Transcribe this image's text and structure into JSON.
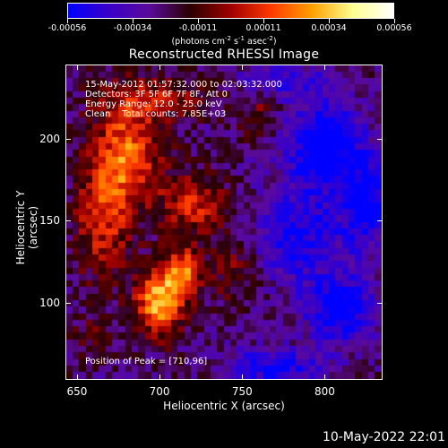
{
  "colorbar": {
    "ticks": [
      "-0.00056",
      "-0.00034",
      "-0.00011",
      "0.00011",
      "0.00034",
      "0.00056"
    ],
    "units_main": "(photons cm",
    "units_exp1": "-2",
    "units_mid1": " s",
    "units_exp2": "-1",
    "units_mid2": " asec",
    "units_exp3": "-2",
    "units_end": ")",
    "colors": [
      "#0000ff",
      "#3a00c8",
      "#5b0a9a",
      "#2a0000",
      "#a00000",
      "#ff3a00",
      "#ffa000",
      "#ffff90",
      "#ffffff"
    ]
  },
  "annotations": {
    "line1": "15-May-2012 01:57:32.000 to 02:03:32.000",
    "line2": "Detectors: 3F 5F 6F 7F 8F, Att 0",
    "line3": "Energy Range: 12.0 - 25.0 keV",
    "line4": "Clean    Total counts: 7.85E+03",
    "peak": "Position of Peak = [710,96]"
  },
  "footer": {
    "timestamp": "10-May-2022 22:01"
  },
  "chart_data": {
    "type": "heatmap",
    "title": "Reconstructed RHESSI Image",
    "xlabel": "Heliocentric X (arcsec)",
    "ylabel": "Heliocentric Y (arcsec)",
    "xlim": [
      643,
      835
    ],
    "ylim": [
      53,
      245
    ],
    "xticks": [
      650,
      700,
      750,
      800
    ],
    "yticks": [
      100,
      150,
      200
    ],
    "zlim": [
      -0.00056,
      0.00056
    ],
    "peak": [
      710,
      96
    ],
    "grid_size": [
      48,
      48
    ],
    "hot_regions": [
      {
        "x": 700,
        "y": 100,
        "sx": 10,
        "sy": 14,
        "amp": 0.00056
      },
      {
        "x": 715,
        "y": 118,
        "sx": 8,
        "sy": 10,
        "amp": 0.0004
      },
      {
        "x": 680,
        "y": 190,
        "sx": 14,
        "sy": 22,
        "amp": 0.00042
      },
      {
        "x": 665,
        "y": 150,
        "sx": 12,
        "sy": 25,
        "amp": 0.0003
      },
      {
        "x": 720,
        "y": 160,
        "sx": 14,
        "sy": 14,
        "amp": 0.0003
      },
      {
        "x": 745,
        "y": 120,
        "sx": 10,
        "sy": 14,
        "amp": 0.00018
      },
      {
        "x": 700,
        "y": 225,
        "sx": 25,
        "sy": 10,
        "amp": 0.00022
      },
      {
        "x": 760,
        "y": 215,
        "sx": 8,
        "sy": 10,
        "amp": 0.00016
      },
      {
        "x": 660,
        "y": 80,
        "sx": 10,
        "sy": 10,
        "amp": 0.00012
      }
    ],
    "cold_regions": [
      {
        "x": 800,
        "y": 195,
        "sx": 15,
        "sy": 18,
        "amp": -0.00045
      },
      {
        "x": 810,
        "y": 95,
        "sx": 14,
        "sy": 14,
        "amp": -0.0004
      },
      {
        "x": 785,
        "y": 140,
        "sx": 18,
        "sy": 20,
        "amp": -0.00028
      },
      {
        "x": 825,
        "y": 160,
        "sx": 10,
        "sy": 20,
        "amp": -0.00035
      },
      {
        "x": 770,
        "y": 60,
        "sx": 20,
        "sy": 8,
        "amp": -0.0003
      },
      {
        "x": 775,
        "y": 235,
        "sx": 20,
        "sy": 8,
        "amp": -0.00022
      }
    ],
    "background": -0.00024
  }
}
